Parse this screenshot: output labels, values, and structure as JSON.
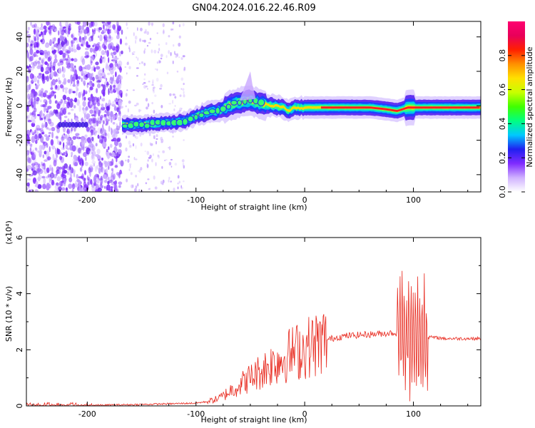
{
  "title": "GN04.2024.016.22.46.R09",
  "colors": {
    "snr_line": "#e8271c",
    "axis": "#000000"
  },
  "chart_data": [
    {
      "type": "heatmap",
      "xlabel": "Height of straight line (km)",
      "ylabel": "Frequency (Hz)",
      "xlim": [
        -256,
        162
      ],
      "ylim": [
        -50,
        49
      ],
      "x_ticks": [
        -200,
        -100,
        0,
        100
      ],
      "y_ticks": [
        40,
        20,
        0,
        -20,
        -40
      ],
      "colorbar": {
        "label": "Normalized spectral amplitude",
        "range": [
          0,
          1
        ],
        "ticks": [
          "0.0",
          "0.2",
          "0.4",
          "0.6",
          "0.8"
        ],
        "stops": [
          "#ffffff",
          "#d0b2ff",
          "#7f2bff",
          "#2020f0",
          "#00c8ff",
          "#00ff80",
          "#40ff00",
          "#c8ff00",
          "#ffe000",
          "#ff9000",
          "#ff2000",
          "#e8005a",
          "#ff0070"
        ]
      },
      "ridge": {
        "x": [
          -168,
          -150,
          -130,
          -110,
          -100,
          -90,
          -80,
          -70,
          -60,
          -50,
          -40,
          -30,
          -20,
          -15,
          -10,
          0,
          20,
          40,
          60,
          75,
          85,
          95,
          100,
          110,
          130,
          162
        ],
        "freq": [
          -11,
          -11,
          -10,
          -9,
          -6,
          -4,
          -3,
          0,
          2,
          3,
          1,
          0,
          -1,
          -3,
          -1,
          -1,
          -1,
          -1,
          -1,
          -2,
          -3,
          -1,
          -1,
          -1,
          -1,
          -1
        ]
      },
      "noise_region": [
        -256,
        -168
      ]
    },
    {
      "type": "line",
      "xlabel": "Height of straight line (km)",
      "ylabel": "SNR (10 * v/v)",
      "y_multiplier": "(x10⁴)",
      "xlim": [
        -256,
        162
      ],
      "ylim": [
        0,
        6
      ],
      "x_ticks": [
        -200,
        -100,
        0,
        100
      ],
      "y_ticks": [
        0,
        2,
        4,
        6
      ],
      "series": [
        {
          "x": [
            -256,
            -200,
            -150,
            -100,
            -90,
            -80,
            -75,
            -70,
            -60,
            -50,
            -40,
            -30,
            -20,
            -10,
            0,
            10,
            20,
            30,
            40,
            60,
            80,
            85,
            90,
            95,
            100,
            105,
            110,
            115,
            130,
            162
          ],
          "values": [
            0.0,
            0.02,
            0.05,
            0.1,
            0.15,
            0.25,
            0.35,
            0.5,
            0.75,
            1.0,
            1.25,
            1.5,
            1.7,
            1.9,
            2.05,
            2.2,
            2.35,
            2.45,
            2.5,
            2.55,
            2.6,
            2.6,
            2.55,
            2.55,
            2.5,
            2.45,
            2.4,
            2.45,
            2.4,
            2.4
          ]
        }
      ]
    }
  ]
}
